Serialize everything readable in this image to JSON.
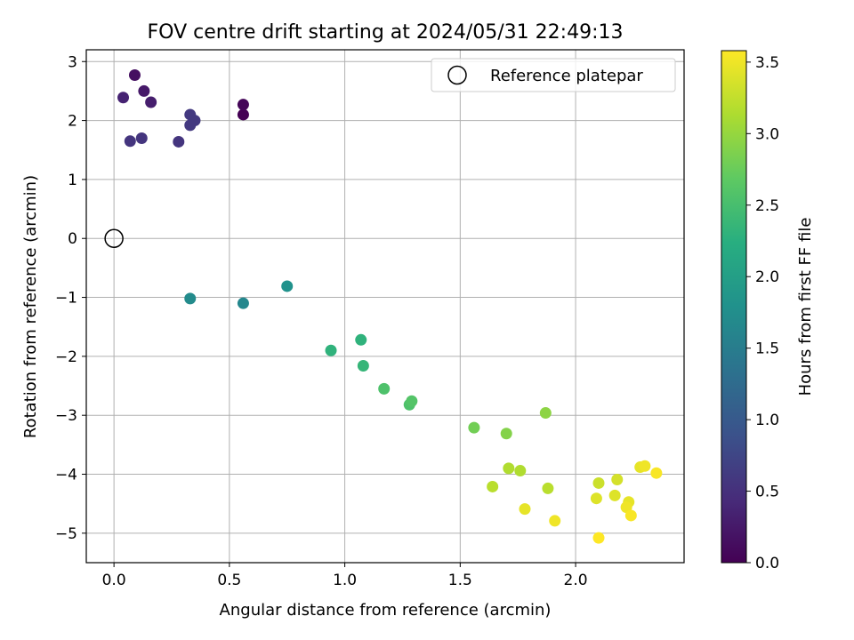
{
  "chart_data": {
    "type": "scatter",
    "title": "FOV centre drift starting at 2024/05/31 22:49:13",
    "xlabel": "Angular distance from reference (arcmin)",
    "ylabel": "Rotation from reference (arcmin)",
    "xlim": [
      -0.12,
      2.47
    ],
    "ylim": [
      -5.5,
      3.2
    ],
    "xticks": [
      0.0,
      0.5,
      1.0,
      1.5,
      2.0
    ],
    "xtick_labels": [
      "0.0",
      "0.5",
      "1.0",
      "1.5",
      "2.0"
    ],
    "yticks": [
      3,
      2,
      1,
      0,
      -1,
      -2,
      -3,
      -4,
      -5
    ],
    "ytick_labels": [
      "3",
      "2",
      "1",
      "0",
      "−1",
      "−2",
      "−3",
      "−4",
      "−5"
    ],
    "grid": true,
    "colorbar": {
      "label": "Hours from first FF file",
      "colormap": "viridis",
      "range": [
        0.0,
        3.58
      ],
      "ticks": [
        0.0,
        0.5,
        1.0,
        1.5,
        2.0,
        2.5,
        3.0,
        3.5
      ],
      "tick_labels": [
        "0.0",
        "0.5",
        "1.0",
        "1.5",
        "2.0",
        "2.5",
        "3.0",
        "3.5"
      ]
    },
    "legend": {
      "position": "top-right",
      "entries": [
        "Reference platepar"
      ]
    },
    "reference_point": {
      "x": 0.0,
      "y": 0.0,
      "label": "Reference platepar"
    },
    "series": [
      {
        "points": [
          {
            "x": 0.56,
            "y": 2.1,
            "hours": 0.0
          },
          {
            "x": 0.56,
            "y": 2.27,
            "hours": 0.05
          },
          {
            "x": 0.09,
            "y": 2.77,
            "hours": 0.15
          },
          {
            "x": 0.13,
            "y": 2.5,
            "hours": 0.25
          },
          {
            "x": 0.16,
            "y": 2.31,
            "hours": 0.3
          },
          {
            "x": 0.04,
            "y": 2.39,
            "hours": 0.35
          },
          {
            "x": 0.07,
            "y": 1.65,
            "hours": 0.55
          },
          {
            "x": 0.12,
            "y": 1.7,
            "hours": 0.55
          },
          {
            "x": 0.28,
            "y": 1.64,
            "hours": 0.55
          },
          {
            "x": 0.33,
            "y": 2.1,
            "hours": 0.6
          },
          {
            "x": 0.35,
            "y": 2.0,
            "hours": 0.6
          },
          {
            "x": 0.33,
            "y": 1.92,
            "hours": 0.6
          },
          {
            "x": 0.33,
            "y": -1.02,
            "hours": 1.7
          },
          {
            "x": 0.56,
            "y": -1.1,
            "hours": 1.65
          },
          {
            "x": 0.75,
            "y": -0.81,
            "hours": 1.8
          },
          {
            "x": 0.94,
            "y": -1.9,
            "hours": 2.3
          },
          {
            "x": 1.07,
            "y": -1.72,
            "hours": 2.3
          },
          {
            "x": 1.08,
            "y": -2.16,
            "hours": 2.35
          },
          {
            "x": 1.17,
            "y": -2.55,
            "hours": 2.55
          },
          {
            "x": 1.28,
            "y": -2.82,
            "hours": 2.55
          },
          {
            "x": 1.29,
            "y": -2.76,
            "hours": 2.6
          },
          {
            "x": 1.56,
            "y": -3.21,
            "hours": 2.8
          },
          {
            "x": 1.7,
            "y": -3.31,
            "hours": 2.9
          },
          {
            "x": 1.87,
            "y": -2.96,
            "hours": 2.95
          },
          {
            "x": 1.71,
            "y": -3.9,
            "hours": 3.15
          },
          {
            "x": 1.76,
            "y": -3.94,
            "hours": 3.15
          },
          {
            "x": 1.64,
            "y": -4.21,
            "hours": 3.2
          },
          {
            "x": 1.88,
            "y": -4.24,
            "hours": 3.2
          },
          {
            "x": 1.78,
            "y": -4.59,
            "hours": 3.45
          },
          {
            "x": 1.91,
            "y": -4.79,
            "hours": 3.5
          },
          {
            "x": 2.1,
            "y": -4.15,
            "hours": 3.3
          },
          {
            "x": 2.18,
            "y": -4.09,
            "hours": 3.35
          },
          {
            "x": 2.09,
            "y": -4.41,
            "hours": 3.4
          },
          {
            "x": 2.17,
            "y": -4.36,
            "hours": 3.4
          },
          {
            "x": 2.23,
            "y": -4.47,
            "hours": 3.45
          },
          {
            "x": 2.22,
            "y": -4.56,
            "hours": 3.5
          },
          {
            "x": 2.24,
            "y": -4.7,
            "hours": 3.55
          },
          {
            "x": 2.28,
            "y": -3.88,
            "hours": 3.45
          },
          {
            "x": 2.3,
            "y": -3.86,
            "hours": 3.5
          },
          {
            "x": 2.35,
            "y": -3.98,
            "hours": 3.55
          },
          {
            "x": 2.1,
            "y": -5.08,
            "hours": 3.58
          }
        ]
      }
    ]
  }
}
